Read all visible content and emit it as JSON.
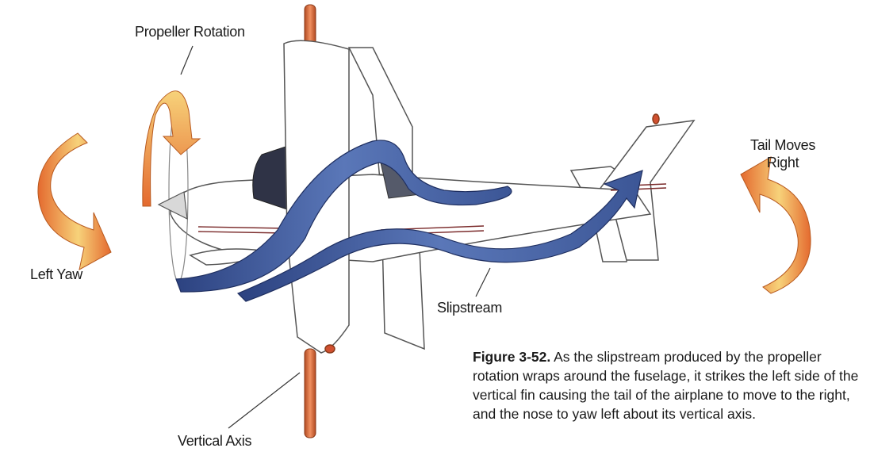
{
  "labels": {
    "propeller_rotation": "Propeller Rotation",
    "left_yaw": "Left Yaw",
    "slipstream": "Slipstream",
    "vertical_axis": "Vertical Axis",
    "tail_moves_line1": "Tail Moves",
    "tail_moves_line2": "Right"
  },
  "caption": {
    "figure": "Figure 3-52.",
    "text": " As the slipstream produced by the propeller rotation wraps around the fuselage, it strikes the left side of the vertical fin causing the tail of the airplane to move to the right, and the nose to yaw left about its vertical axis."
  },
  "colors": {
    "slipstream": "#4a66a8",
    "slipstream_dark": "#2b3f78",
    "axis_rod": "#d36a3a",
    "arrow_orange": "#e8823a",
    "arrow_yellow": "#f7d27a",
    "outline": "#555555"
  }
}
